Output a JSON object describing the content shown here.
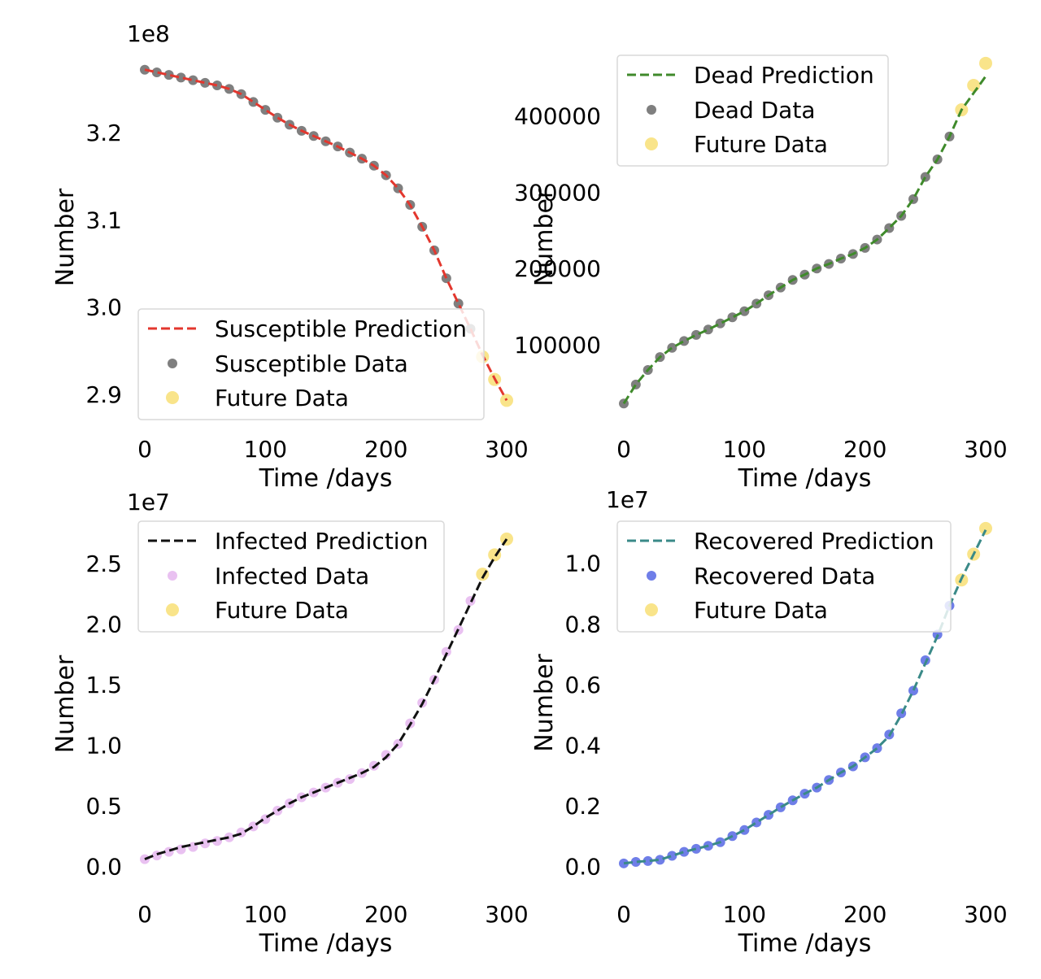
{
  "colors": {
    "susceptible_line": "#e3372e",
    "dead_line": "#3f8a2b",
    "infected_line": "#111111",
    "recovered_line": "#3a8a88",
    "gray_data": "#7f7f7f",
    "infected_data": "#e9c1f1",
    "recovered_data": "#6f7ee8",
    "future_data": "#f9e48a",
    "legend_border": "#d9d9d9"
  },
  "chart_data": [
    {
      "type": "line",
      "panel": "top-left",
      "xlabel": "Time /days",
      "ylabel": "Number",
      "offset_label": "1e8",
      "xlim": [
        0,
        300
      ],
      "ylim": [
        2.885,
        3.282
      ],
      "xticks": [
        0,
        100,
        200,
        300
      ],
      "xtick_labels": [
        "0",
        "100",
        "200",
        "300"
      ],
      "yticks": [
        2.9,
        3.0,
        3.1,
        3.2
      ],
      "ytick_labels": [
        "2.9",
        "3.0",
        "3.1",
        "3.2"
      ],
      "legend_position": "lower-left",
      "series": [
        {
          "name": "Susceptible Prediction",
          "kind": "dashed-line",
          "x": [
            0,
            10,
            20,
            30,
            40,
            50,
            60,
            70,
            80,
            90,
            100,
            110,
            120,
            130,
            140,
            150,
            160,
            170,
            180,
            190,
            200,
            210,
            220,
            230,
            240,
            250,
            260,
            270,
            280,
            290,
            300
          ],
          "values": [
            3.272,
            3.269,
            3.266,
            3.263,
            3.26,
            3.257,
            3.254,
            3.25,
            3.244,
            3.235,
            3.226,
            3.217,
            3.209,
            3.202,
            3.196,
            3.19,
            3.184,
            3.177,
            3.17,
            3.162,
            3.151,
            3.136,
            3.117,
            3.092,
            3.065,
            3.033,
            3.004,
            2.975,
            2.945,
            2.918,
            2.893
          ]
        },
        {
          "name": "Susceptible Data",
          "kind": "points",
          "x": [
            0,
            10,
            20,
            30,
            40,
            50,
            60,
            70,
            80,
            90,
            100,
            110,
            120,
            130,
            140,
            150,
            160,
            170,
            180,
            190,
            200,
            210,
            220,
            230,
            240,
            250,
            260,
            270
          ],
          "values": [
            3.272,
            3.269,
            3.266,
            3.263,
            3.26,
            3.257,
            3.254,
            3.25,
            3.244,
            3.235,
            3.226,
            3.217,
            3.209,
            3.202,
            3.196,
            3.19,
            3.184,
            3.177,
            3.17,
            3.162,
            3.151,
            3.136,
            3.117,
            3.092,
            3.065,
            3.033,
            3.004,
            2.975
          ]
        },
        {
          "name": "Future Data",
          "kind": "future-points",
          "x": [
            280,
            290,
            300
          ],
          "values": [
            2.943,
            2.917,
            2.893
          ]
        }
      ]
    },
    {
      "type": "line",
      "panel": "top-right",
      "xlabel": "Time /days",
      "ylabel": "Number",
      "offset_label": "",
      "xlim": [
        0,
        300
      ],
      "ylim": [
        18000,
        472000
      ],
      "xticks": [
        0,
        100,
        200,
        300
      ],
      "xtick_labels": [
        "0",
        "100",
        "200",
        "300"
      ],
      "yticks": [
        100000,
        200000,
        300000,
        400000
      ],
      "ytick_labels": [
        "100000",
        "200000",
        "300000",
        "400000"
      ],
      "legend_position": "upper-left",
      "series": [
        {
          "name": "Dead Prediction",
          "kind": "dashed-line",
          "x": [
            0,
            10,
            20,
            30,
            40,
            50,
            60,
            70,
            80,
            90,
            100,
            110,
            120,
            130,
            140,
            150,
            160,
            170,
            180,
            190,
            200,
            210,
            220,
            230,
            240,
            250,
            260,
            270,
            280,
            290,
            300
          ],
          "values": [
            23000,
            48000,
            67000,
            84000,
            96000,
            105000,
            113000,
            120000,
            128000,
            136000,
            144000,
            154000,
            165000,
            175000,
            185000,
            192000,
            200000,
            206000,
            213000,
            219000,
            227000,
            238000,
            253000,
            269000,
            291000,
            320000,
            343000,
            373000,
            408000,
            430000,
            452000
          ]
        },
        {
          "name": "Dead Data",
          "kind": "points",
          "x": [
            0,
            10,
            20,
            30,
            40,
            50,
            60,
            70,
            80,
            90,
            100,
            110,
            120,
            130,
            140,
            150,
            160,
            170,
            180,
            190,
            200,
            210,
            220,
            230,
            240,
            250,
            260,
            270
          ],
          "values": [
            23000,
            48000,
            67000,
            84000,
            96000,
            105000,
            113000,
            120000,
            128000,
            136000,
            144000,
            154000,
            165000,
            175000,
            185000,
            192000,
            200000,
            206000,
            213000,
            219000,
            227000,
            238000,
            253000,
            269000,
            291000,
            320000,
            343000,
            373000
          ]
        },
        {
          "name": "Future Data",
          "kind": "future-points",
          "x": [
            280,
            290,
            300
          ],
          "values": [
            408000,
            440000,
            469000
          ]
        }
      ]
    },
    {
      "type": "line",
      "panel": "bottom-left",
      "xlabel": "Time /days",
      "ylabel": "Number",
      "offset_label": "1e7",
      "xlim": [
        0,
        300
      ],
      "ylim": [
        -0.05,
        2.78
      ],
      "xticks": [
        0,
        100,
        200,
        300
      ],
      "xtick_labels": [
        "0",
        "100",
        "200",
        "300"
      ],
      "yticks": [
        0.0,
        0.5,
        1.0,
        1.5,
        2.0,
        2.5
      ],
      "ytick_labels": [
        "0.0",
        "0.5",
        "1.0",
        "1.5",
        "2.0",
        "2.5"
      ],
      "legend_position": "upper-left",
      "series": [
        {
          "name": "Infected Prediction",
          "kind": "dashed-line",
          "x": [
            0,
            10,
            20,
            30,
            40,
            50,
            60,
            70,
            80,
            90,
            100,
            110,
            120,
            130,
            140,
            150,
            160,
            170,
            180,
            190,
            200,
            210,
            220,
            230,
            240,
            250,
            260,
            270,
            280,
            290,
            300
          ],
          "values": [
            0.06,
            0.1,
            0.13,
            0.16,
            0.18,
            0.2,
            0.22,
            0.24,
            0.27,
            0.33,
            0.4,
            0.46,
            0.52,
            0.57,
            0.61,
            0.65,
            0.69,
            0.73,
            0.77,
            0.82,
            0.9,
            1.01,
            1.17,
            1.34,
            1.54,
            1.75,
            1.96,
            2.17,
            2.38,
            2.55,
            2.7
          ]
        },
        {
          "name": "Infected Data",
          "kind": "points",
          "x": [
            0,
            10,
            20,
            30,
            40,
            50,
            60,
            70,
            80,
            90,
            100,
            110,
            120,
            130,
            140,
            150,
            160,
            170,
            180,
            190,
            200,
            210,
            220,
            230,
            240,
            250,
            260,
            270
          ],
          "values": [
            0.06,
            0.09,
            0.12,
            0.14,
            0.16,
            0.19,
            0.21,
            0.24,
            0.28,
            0.33,
            0.39,
            0.46,
            0.52,
            0.57,
            0.61,
            0.65,
            0.69,
            0.72,
            0.77,
            0.83,
            0.92,
            1.01,
            1.18,
            1.35,
            1.54,
            1.77,
            1.95,
            2.19
          ]
        },
        {
          "name": "Future Data",
          "kind": "future-points",
          "x": [
            280,
            290,
            300
          ],
          "values": [
            2.41,
            2.57,
            2.7
          ]
        }
      ]
    },
    {
      "type": "line",
      "panel": "bottom-right",
      "xlabel": "Time /days",
      "ylabel": "Number",
      "offset_label": "1e7",
      "xlim": [
        0,
        300
      ],
      "ylim": [
        -0.02,
        1.12
      ],
      "xticks": [
        0,
        100,
        200,
        300
      ],
      "xtick_labels": [
        "0",
        "100",
        "200",
        "300"
      ],
      "yticks": [
        0.0,
        0.2,
        0.4,
        0.6,
        0.8,
        1.0
      ],
      "ytick_labels": [
        "0.0",
        "0.2",
        "0.4",
        "0.6",
        "0.8",
        "1.0"
      ],
      "legend_position": "upper-left",
      "series": [
        {
          "name": "Recovered Prediction",
          "kind": "dashed-line",
          "x": [
            0,
            10,
            20,
            30,
            40,
            50,
            60,
            70,
            80,
            90,
            100,
            110,
            120,
            130,
            140,
            150,
            160,
            170,
            180,
            190,
            200,
            210,
            220,
            230,
            240,
            250,
            260,
            270,
            280,
            290,
            300
          ],
          "values": [
            0.01,
            0.015,
            0.018,
            0.022,
            0.035,
            0.048,
            0.058,
            0.068,
            0.08,
            0.1,
            0.12,
            0.145,
            0.17,
            0.195,
            0.218,
            0.24,
            0.26,
            0.285,
            0.31,
            0.33,
            0.36,
            0.39,
            0.43,
            0.5,
            0.58,
            0.67,
            0.76,
            0.86,
            0.95,
            1.03,
            1.11
          ]
        },
        {
          "name": "Recovered Data",
          "kind": "points",
          "x": [
            0,
            10,
            20,
            30,
            40,
            50,
            60,
            70,
            80,
            90,
            100,
            110,
            120,
            130,
            140,
            150,
            160,
            170,
            180,
            190,
            200,
            210,
            220,
            230,
            240,
            250,
            260,
            270
          ],
          "values": [
            0.01,
            0.015,
            0.018,
            0.022,
            0.035,
            0.048,
            0.058,
            0.068,
            0.08,
            0.1,
            0.12,
            0.145,
            0.17,
            0.195,
            0.218,
            0.24,
            0.26,
            0.285,
            0.31,
            0.33,
            0.36,
            0.39,
            0.435,
            0.505,
            0.58,
            0.68,
            0.765,
            0.86
          ]
        },
        {
          "name": "Future Data",
          "kind": "future-points",
          "x": [
            280,
            290,
            300
          ],
          "values": [
            0.945,
            1.03,
            1.115
          ]
        }
      ]
    }
  ]
}
